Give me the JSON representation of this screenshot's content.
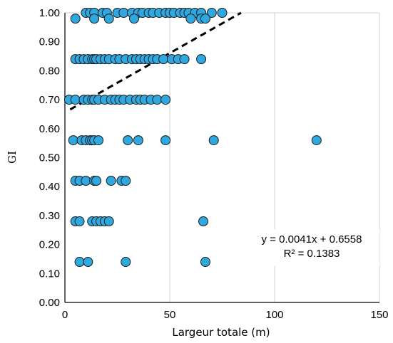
{
  "chart_data": {
    "type": "scatter",
    "title": "",
    "xlabel": "Largeur totale (m)",
    "ylabel": "GI",
    "xlim": [
      0,
      150
    ],
    "ylim": [
      0,
      1
    ],
    "x_ticks": [
      0,
      50,
      100,
      150
    ],
    "y_ticks": [
      0.0,
      0.1,
      0.2,
      0.3,
      0.4,
      0.5,
      0.6,
      0.7,
      0.8,
      0.9,
      1.0
    ],
    "x_tick_labels": [
      "0",
      "50",
      "100",
      "150"
    ],
    "y_tick_labels": [
      "0.00",
      "0.10",
      "0.20",
      "0.30",
      "0.40",
      "0.50",
      "0.60",
      "0.70",
      "0.80",
      "0.90",
      "1.00"
    ],
    "grid": "vertical",
    "marker_color": "#2fa8e0",
    "series": [
      {
        "points": [
          [
            10,
            1.0
          ],
          [
            12,
            1.0
          ],
          [
            14,
            1.0
          ],
          [
            18,
            1.0
          ],
          [
            20,
            1.0
          ],
          [
            25,
            1.0
          ],
          [
            28,
            1.0
          ],
          [
            32,
            1.0
          ],
          [
            35,
            1.0
          ],
          [
            37,
            1.0
          ],
          [
            40,
            1.0
          ],
          [
            42,
            1.0
          ],
          [
            45,
            1.0
          ],
          [
            48,
            1.0
          ],
          [
            50,
            1.0
          ],
          [
            52,
            1.0
          ],
          [
            55,
            1.0
          ],
          [
            57,
            1.0
          ],
          [
            59,
            1.0
          ],
          [
            62,
            1.0
          ],
          [
            65,
            1.0
          ],
          [
            70,
            1.0
          ],
          [
            75,
            1.0
          ],
          [
            5,
            0.98
          ],
          [
            14,
            0.98
          ],
          [
            21,
            0.98
          ],
          [
            33,
            0.98
          ],
          [
            60,
            0.98
          ],
          [
            65,
            0.98
          ],
          [
            67,
            0.98
          ],
          [
            5,
            0.84
          ],
          [
            7,
            0.84
          ],
          [
            9,
            0.84
          ],
          [
            11,
            0.84
          ],
          [
            13,
            0.84
          ],
          [
            14,
            0.84
          ],
          [
            15,
            0.84
          ],
          [
            17,
            0.84
          ],
          [
            19,
            0.84
          ],
          [
            21,
            0.84
          ],
          [
            24,
            0.84
          ],
          [
            26,
            0.84
          ],
          [
            29,
            0.84
          ],
          [
            32,
            0.84
          ],
          [
            34,
            0.84
          ],
          [
            36,
            0.84
          ],
          [
            38,
            0.84
          ],
          [
            40,
            0.84
          ],
          [
            42,
            0.84
          ],
          [
            44,
            0.84
          ],
          [
            47,
            0.84
          ],
          [
            51,
            0.84
          ],
          [
            54,
            0.84
          ],
          [
            57,
            0.84
          ],
          [
            65,
            0.84
          ],
          [
            2,
            0.7
          ],
          [
            5,
            0.7
          ],
          [
            9,
            0.7
          ],
          [
            11,
            0.7
          ],
          [
            13,
            0.7
          ],
          [
            14,
            0.7
          ],
          [
            16,
            0.7
          ],
          [
            19,
            0.7
          ],
          [
            22,
            0.7
          ],
          [
            24,
            0.7
          ],
          [
            26,
            0.7
          ],
          [
            28,
            0.7
          ],
          [
            31,
            0.7
          ],
          [
            34,
            0.7
          ],
          [
            36,
            0.7
          ],
          [
            38,
            0.7
          ],
          [
            41,
            0.7
          ],
          [
            44,
            0.7
          ],
          [
            48,
            0.7
          ],
          [
            4,
            0.56
          ],
          [
            8,
            0.56
          ],
          [
            10,
            0.56
          ],
          [
            12,
            0.56
          ],
          [
            13,
            0.56
          ],
          [
            14,
            0.56
          ],
          [
            16,
            0.56
          ],
          [
            30,
            0.56
          ],
          [
            35,
            0.56
          ],
          [
            48,
            0.56
          ],
          [
            71,
            0.56
          ],
          [
            120,
            0.56
          ],
          [
            5,
            0.42
          ],
          [
            7,
            0.42
          ],
          [
            10,
            0.42
          ],
          [
            14,
            0.42
          ],
          [
            15,
            0.42
          ],
          [
            22,
            0.42
          ],
          [
            27,
            0.42
          ],
          [
            29,
            0.42
          ],
          [
            5,
            0.28
          ],
          [
            7,
            0.28
          ],
          [
            13,
            0.28
          ],
          [
            15,
            0.28
          ],
          [
            17,
            0.28
          ],
          [
            19,
            0.28
          ],
          [
            21,
            0.28
          ],
          [
            66,
            0.28
          ],
          [
            7,
            0.14
          ],
          [
            11,
            0.14
          ],
          [
            29,
            0.14
          ],
          [
            67,
            0.14
          ]
        ]
      }
    ],
    "trendline": {
      "slope": 0.0041,
      "intercept": 0.6558,
      "x_range": [
        2.5,
        84
      ],
      "style": "dashed"
    },
    "annotation": {
      "equation": "y = 0.0041x + 0.6558",
      "r_squared": "R² = 0.1383"
    }
  }
}
